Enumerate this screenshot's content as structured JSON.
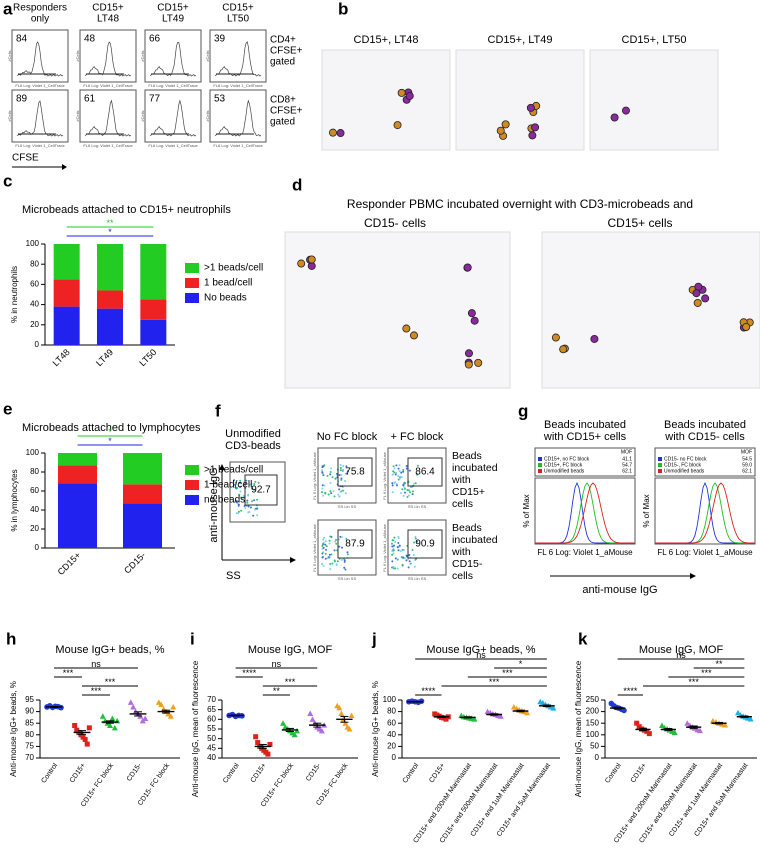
{
  "panels": {
    "a": {
      "letter": "a",
      "columns": [
        [
          "Responders",
          "only"
        ],
        [
          "CD15+",
          "LT48"
        ],
        [
          "CD15+",
          "LT49"
        ],
        [
          "CD15+",
          "LT50"
        ]
      ],
      "rows": [
        {
          "label": [
            "CD4+",
            "CFSE+",
            "gated"
          ],
          "values": [
            84,
            48,
            66,
            39
          ]
        },
        {
          "label": [
            "CD8+",
            "CFSE+",
            "gated"
          ],
          "values": [
            89,
            61,
            77,
            53
          ]
        }
      ],
      "plot_x": "FL6 Log: Violet 1_CellTrace",
      "plot_y": "#Cells",
      "axis": "CFSE"
    },
    "b": {
      "letter": "b",
      "titles": [
        "CD15+, LT48",
        "CD15+, LT49",
        "CD15+, LT50"
      ]
    },
    "d": {
      "letter": "d",
      "title": "Responder PBMC incubated overnight with CD3-microbeads and",
      "titles": [
        "CD15- cells",
        "CD15+ cells"
      ]
    },
    "f": {
      "letter": "f",
      "unmodified": [
        "Unmodified",
        "CD3-beads"
      ],
      "unmodified_value": 92.7,
      "columns": [
        "No FC block",
        "+ FC block"
      ],
      "rows": [
        {
          "label": [
            "Beads",
            "incubated",
            "with",
            "CD15+",
            "cells"
          ],
          "values": [
            75.8,
            86.4
          ]
        },
        {
          "label": [
            "Beads",
            "incubated",
            "with",
            "CD15-",
            "cells"
          ],
          "values": [
            87.9,
            90.9
          ]
        }
      ],
      "y_axis": "anti-mouse IgG",
      "x_axis": "SS",
      "plot_y": "FL 6 Log: Violet 1_aMouse",
      "plot_x": "SS Lin SS"
    },
    "g": {
      "letter": "g",
      "legend_header": "MOF",
      "y_axis": "% of Max",
      "x_axis": "FL 6 Log: Violet 1_aMouse",
      "axis": "anti-mouse IgG",
      "plots": [
        {
          "title": [
            "Beads incubated",
            "with CD15+ cells"
          ],
          "legend": [
            {
              "name": "CD15+, no FC block",
              "value": "41.1",
              "color": "#2233dd"
            },
            {
              "name": "CD15+, FC block",
              "value": "54.7",
              "color": "#22bb22"
            },
            {
              "name": "Unmodified beads",
              "value": "62.1",
              "color": "#dd2222"
            }
          ]
        },
        {
          "title": [
            "Beads incubated",
            "with CD15- cells"
          ],
          "legend": [
            {
              "name": "CD15- no FC block",
              "value": "54.5",
              "color": "#2233dd"
            },
            {
              "name": "CD15-, FC block",
              "value": "59.0",
              "color": "#22bb22"
            },
            {
              "name": "Unmodified beads",
              "value": "62.1",
              "color": "#dd2222"
            }
          ]
        }
      ]
    }
  },
  "chart_data": [
    {
      "type": "stacked_bar",
      "panel": "c",
      "title": "Microbeads attached to CD15+ neutrophils",
      "y_label": "% in neutrophils",
      "categories": [
        "LT48",
        "LT49",
        "LT50"
      ],
      "series": [
        {
          "name": ">1 beads/cell",
          "color": "#22cc22",
          "values": [
            35,
            46,
            55
          ]
        },
        {
          "name": "1 bead/cell",
          "color": "#ee2222",
          "values": [
            27,
            18,
            20
          ]
        },
        {
          "name": "No beads",
          "color": "#2222ee",
          "values": [
            38,
            36,
            25
          ]
        }
      ],
      "ylim": [
        0,
        100
      ],
      "yticks": [
        0,
        20,
        40,
        60,
        80,
        100
      ],
      "significance": [
        {
          "label": "*",
          "color": "#2222ee",
          "between": [
            "LT48",
            "LT50"
          ]
        },
        {
          "label": "**",
          "color": "#22cc22",
          "between": [
            "LT48",
            "LT50"
          ]
        }
      ]
    },
    {
      "type": "stacked_bar",
      "panel": "e",
      "title": "Microbeads attached to lymphocytes",
      "y_label": "% in lymphocytes",
      "categories": [
        "CD15+",
        "CD15-"
      ],
      "series": [
        {
          "name": ">1 beads/cell",
          "color": "#22cc22",
          "values": [
            13,
            33
          ]
        },
        {
          "name": "1 bead/cell",
          "color": "#ee2222",
          "values": [
            19,
            20
          ]
        },
        {
          "name": "no beads",
          "color": "#2222ee",
          "values": [
            68,
            47
          ]
        }
      ],
      "ylim": [
        0,
        100
      ],
      "yticks": [
        0,
        20,
        40,
        60,
        80,
        100
      ],
      "significance": [
        {
          "label": "*",
          "color": "#2222ee",
          "between": [
            "CD15+",
            "CD15-"
          ]
        },
        {
          "label": "*",
          "color": "#22cc22",
          "between": [
            "CD15+",
            "CD15-"
          ]
        }
      ]
    },
    {
      "type": "dot",
      "panel": "h",
      "title": "Mouse IgG+ beads, %",
      "y_label": "Anti-mouse IgG+ beads, %",
      "categories": [
        "Control",
        "CD15+",
        "CD15+ FC block",
        "CD15-",
        "CD15- FC block"
      ],
      "colors": [
        "#1f3bd6",
        "#e0201b",
        "#1fbf3a",
        "#b36be0",
        "#f0a020"
      ],
      "values": [
        92,
        81,
        85.5,
        89,
        90
      ],
      "errors": [
        0.2,
        0.8,
        0.5,
        0.9,
        0.6
      ],
      "points": [
        [
          92,
          92.5,
          91.8,
          92.3,
          92.1,
          91.7
        ],
        [
          84,
          82,
          81,
          80,
          79,
          78,
          76,
          83
        ],
        [
          88,
          86,
          85,
          84,
          87,
          83,
          86
        ],
        [
          94,
          92,
          90,
          89,
          88,
          86,
          87
        ],
        [
          94,
          93,
          91,
          90,
          89,
          88,
          92
        ]
      ],
      "ylim": [
        70,
        95
      ],
      "yticks": [
        70,
        75,
        80,
        85,
        90,
        95
      ],
      "significance": [
        {
          "label": "***",
          "between": [
            "CD15+",
            "CD15+ FC block"
          ]
        },
        {
          "label": "***",
          "between": [
            "CD15+",
            "CD15-"
          ]
        },
        {
          "label": "***",
          "between": [
            "Control",
            "CD15+"
          ]
        },
        {
          "label": "ns",
          "between": [
            "Control",
            "CD15-"
          ]
        }
      ]
    },
    {
      "type": "dot",
      "panel": "i",
      "title": "Mouse IgG, MOF",
      "y_label": "Anti-mouse IgG, mean of fluorescence",
      "categories": [
        "Control",
        "CD15+",
        "CD15+ FC block",
        "CD15-",
        "CD15- FC block"
      ],
      "colors": [
        "#1f3bd6",
        "#e0201b",
        "#1fbf3a",
        "#b36be0",
        "#f0a020"
      ],
      "values": [
        62,
        46,
        54.5,
        57,
        60
      ],
      "errors": [
        0.2,
        1,
        0.8,
        1,
        1.5
      ],
      "points": [
        [
          62,
          62.5,
          61.5,
          62,
          61.8
        ],
        [
          51,
          48,
          46,
          45,
          44,
          43,
          42,
          47
        ],
        [
          58,
          56,
          55,
          54,
          53,
          52,
          54
        ],
        [
          63,
          60,
          58,
          56,
          55,
          54,
          57
        ],
        [
          67,
          66,
          63,
          60,
          58,
          56,
          55,
          62
        ]
      ],
      "ylim": [
        40,
        70
      ],
      "yticks": [
        40,
        45,
        50,
        55,
        60,
        65,
        70
      ],
      "significance": [
        {
          "label": "**",
          "between": [
            "CD15+",
            "CD15+ FC block"
          ]
        },
        {
          "label": "***",
          "between": [
            "CD15+",
            "CD15-"
          ]
        },
        {
          "label": "****",
          "between": [
            "Control",
            "CD15+"
          ]
        },
        {
          "label": "ns",
          "between": [
            "Control",
            "CD15-"
          ]
        }
      ]
    },
    {
      "type": "dot",
      "panel": "j",
      "title": "Mouse IgG+ beads, %",
      "y_label": "Anti-mouse IgG+ beads, %",
      "categories": [
        "Control",
        "CD15+",
        "CD15+ and 200nM Marimastat",
        "CD15+ and 500nM Marimastat",
        "CD15+ and 1uM Marimastat",
        "CD15+ and 5uM Marimastat"
      ],
      "colors": [
        "#1f3bd6",
        "#e0201b",
        "#1fbf3a",
        "#b36be0",
        "#f0a020",
        "#1fb0e8"
      ],
      "values": [
        97,
        71,
        70,
        75,
        81,
        90
      ],
      "errors": [
        0.5,
        1.2,
        1,
        1.2,
        1.3,
        1.3
      ],
      "points": [
        [
          97,
          98,
          97,
          96,
          98
        ],
        [
          76,
          74,
          72,
          70,
          69,
          67,
          71
        ],
        [
          73,
          71,
          70,
          69,
          68,
          67
        ],
        [
          80,
          78,
          76,
          75,
          73,
          72
        ],
        [
          88,
          85,
          83,
          81,
          80,
          78
        ],
        [
          97,
          95,
          92,
          90,
          88,
          86
        ]
      ],
      "ylim": [
        0,
        100
      ],
      "yticks": [
        0,
        20,
        40,
        60,
        80,
        100
      ],
      "significance": [
        {
          "label": "****",
          "between": [
            "Control",
            "CD15+"
          ]
        },
        {
          "label": "***",
          "between": [
            "CD15+",
            "CD15+ and 5uM Marimastat"
          ]
        },
        {
          "label": "***",
          "between": [
            "CD15+ and 200nM Marimastat",
            "CD15+ and 5uM Marimastat"
          ]
        },
        {
          "label": "*",
          "between": [
            "CD15+ and 500nM Marimastat",
            "CD15+ and 5uM Marimastat"
          ]
        },
        {
          "label": "ns",
          "between": [
            "Control",
            "CD15+ and 5uM Marimastat"
          ]
        }
      ]
    },
    {
      "type": "dot",
      "panel": "k",
      "title": "Mouse IgG, MOF",
      "y_label": "Anti-mouse IgG, mean of fluorescence",
      "categories": [
        "Control",
        "CD15+",
        "CD15+ and 200nM Marimastat",
        "CD15+ and 500nM Marimastat",
        "CD15+ and 1uM Marimastat",
        "CD15+ and 5uM Marimastat"
      ],
      "colors": [
        "#1f3bd6",
        "#e0201b",
        "#1fbf3a",
        "#b36be0",
        "#f0a020",
        "#1fb0e8"
      ],
      "values": [
        215,
        123,
        123,
        133,
        150,
        178
      ],
      "errors": [
        4,
        5,
        4,
        5,
        3,
        3
      ],
      "points": [
        [
          235,
          225,
          218,
          215,
          210,
          205
        ],
        [
          150,
          135,
          125,
          120,
          115,
          105
        ],
        [
          140,
          130,
          125,
          120,
          115,
          110
        ],
        [
          150,
          140,
          133,
          128,
          122,
          118
        ],
        [
          160,
          155,
          150,
          146,
          142
        ],
        [
          195,
          185,
          180,
          176,
          172,
          168
        ]
      ],
      "ylim": [
        0,
        250
      ],
      "yticks": [
        0,
        50,
        100,
        150,
        200,
        250
      ],
      "significance": [
        {
          "label": "****",
          "between": [
            "Control",
            "CD15+"
          ]
        },
        {
          "label": "***",
          "between": [
            "CD15+",
            "CD15+ and 5uM Marimastat"
          ]
        },
        {
          "label": "***",
          "between": [
            "CD15+ and 200nM Marimastat",
            "CD15+ and 5uM Marimastat"
          ]
        },
        {
          "label": "**",
          "between": [
            "CD15+ and 500nM Marimastat",
            "CD15+ and 5uM Marimastat"
          ]
        },
        {
          "label": "ns",
          "between": [
            "Control",
            "CD15+ and 5uM Marimastat"
          ]
        }
      ]
    }
  ]
}
